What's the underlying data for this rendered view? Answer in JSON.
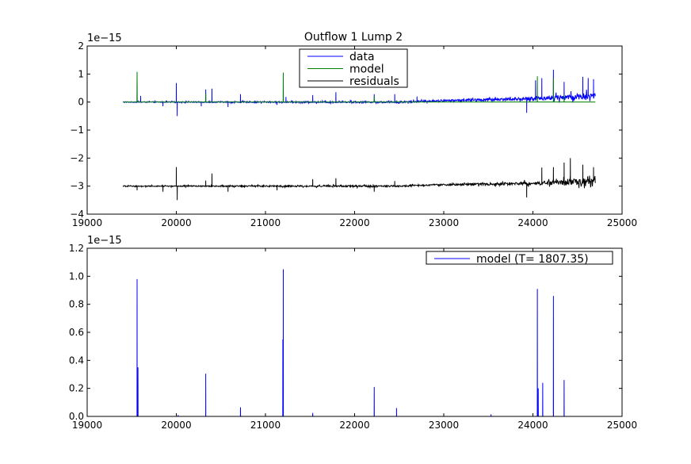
{
  "chart_data": [
    {
      "type": "line",
      "title": "Outflow 1 Lump 2",
      "xlabel": "",
      "ylabel": "",
      "xlim": [
        19000,
        25000
      ],
      "ylim": [
        -4,
        2
      ],
      "y_scale_label": "1e−15",
      "x_ticks": [
        19000,
        20000,
        21000,
        22000,
        23000,
        24000,
        25000
      ],
      "x_tick_labels": [
        "19000",
        "20000",
        "21000",
        "22000",
        "23000",
        "24000",
        "25000"
      ],
      "y_ticks": [
        -4,
        -3,
        -2,
        -1,
        0,
        1,
        2
      ],
      "y_tick_labels": [
        "−4",
        "−3",
        "−2",
        "−1",
        "0",
        "1",
        "2"
      ],
      "legend_position": "top-center",
      "data_range": [
        19400,
        24700
      ],
      "series": [
        {
          "name": "data",
          "color": "#0000ff",
          "baseline": 0,
          "noise": [
            [
              19400,
              0.015
            ],
            [
              23000,
              0.03
            ],
            [
              24000,
              0.06
            ],
            [
              24700,
              0.12
            ]
          ],
          "drift": [
            [
              19400,
              0
            ],
            [
              22500,
              0
            ],
            [
              23000,
              0.05
            ],
            [
              24000,
              0.12
            ],
            [
              24700,
              0.22
            ]
          ],
          "spikes": [
            [
              19560,
              1.08
            ],
            [
              19600,
              0.22
            ],
            [
              19850,
              -0.15
            ],
            [
              20000,
              0.68
            ],
            [
              20010,
              -0.5
            ],
            [
              20280,
              -0.15
            ],
            [
              20330,
              0.45
            ],
            [
              20400,
              0.48
            ],
            [
              20580,
              -0.18
            ],
            [
              20720,
              0.28
            ],
            [
              21130,
              -0.1
            ],
            [
              21200,
              1.05
            ],
            [
              21230,
              0.18
            ],
            [
              21530,
              0.25
            ],
            [
              21790,
              0.35
            ],
            [
              22220,
              0.28
            ],
            [
              22450,
              0.28
            ],
            [
              22700,
              0.18
            ],
            [
              23930,
              -0.5
            ],
            [
              24030,
              0.65
            ],
            [
              24100,
              0.72
            ],
            [
              24230,
              1.0
            ],
            [
              24350,
              0.55
            ],
            [
              24560,
              0.7
            ],
            [
              24620,
              0.65
            ],
            [
              24680,
              0.6
            ]
          ]
        },
        {
          "name": "model",
          "color": "#008000",
          "baseline": 0,
          "spikes": [
            [
              19560,
              1.08
            ],
            [
              20330,
              0.3
            ],
            [
              21200,
              1.05
            ],
            [
              22220,
              0.21
            ],
            [
              22470,
              0.06
            ],
            [
              24050,
              0.92
            ],
            [
              24230,
              0.86
            ],
            [
              24350,
              0.26
            ]
          ]
        },
        {
          "name": "residuals",
          "color": "#000000",
          "baseline": -3,
          "noise": [
            [
              19400,
              0.015
            ],
            [
              23000,
              0.03
            ],
            [
              24000,
              0.06
            ],
            [
              24700,
              0.12
            ]
          ],
          "drift": [
            [
              19400,
              0
            ],
            [
              22500,
              0
            ],
            [
              23000,
              0.05
            ],
            [
              24000,
              0.1
            ],
            [
              24700,
              0.18
            ]
          ],
          "spikes": [
            [
              19560,
              -0.15
            ],
            [
              19850,
              -0.2
            ],
            [
              20000,
              0.68
            ],
            [
              20010,
              -0.5
            ],
            [
              20330,
              0.2
            ],
            [
              20400,
              0.45
            ],
            [
              20580,
              -0.2
            ],
            [
              21130,
              -0.15
            ],
            [
              21530,
              0.25
            ],
            [
              21790,
              0.28
            ],
            [
              22220,
              -0.2
            ],
            [
              22450,
              0.18
            ],
            [
              23930,
              -0.5
            ],
            [
              24100,
              0.55
            ],
            [
              24230,
              0.55
            ],
            [
              24350,
              0.7
            ],
            [
              24420,
              0.85
            ],
            [
              24560,
              0.6
            ],
            [
              24680,
              0.5
            ]
          ]
        }
      ]
    },
    {
      "type": "line",
      "title": "",
      "xlabel": "",
      "ylabel": "",
      "xlim": [
        19000,
        25000
      ],
      "ylim": [
        0,
        1.2
      ],
      "y_scale_label": "1e−15",
      "x_ticks": [
        19000,
        20000,
        21000,
        22000,
        23000,
        24000,
        25000
      ],
      "x_tick_labels": [
        "19000",
        "20000",
        "21000",
        "22000",
        "23000",
        "24000",
        "25000"
      ],
      "y_ticks": [
        0,
        0.2,
        0.4,
        0.6,
        0.8,
        1.0,
        1.2
      ],
      "y_tick_labels": [
        "0.0",
        "0.2",
        "0.4",
        "0.6",
        "0.8",
        "1.0",
        "1.2"
      ],
      "legend_position": "top-right",
      "data_range": [
        19400,
        24700
      ],
      "series": [
        {
          "name": "model (T= 1807.35)",
          "color": "#0000ff",
          "baseline": 0,
          "spikes": [
            [
              19560,
              0.98
            ],
            [
              19570,
              0.35
            ],
            [
              20020,
              0.01
            ],
            [
              20330,
              0.305
            ],
            [
              20720,
              0.065
            ],
            [
              21200,
              1.05
            ],
            [
              21195,
              0.55
            ],
            [
              21530,
              0.025
            ],
            [
              22220,
              0.21
            ],
            [
              22470,
              0.06
            ],
            [
              23530,
              0.015
            ],
            [
              24050,
              0.91
            ],
            [
              24060,
              0.2
            ],
            [
              24110,
              0.24
            ],
            [
              24230,
              0.86
            ],
            [
              24350,
              0.26
            ]
          ]
        }
      ]
    }
  ]
}
